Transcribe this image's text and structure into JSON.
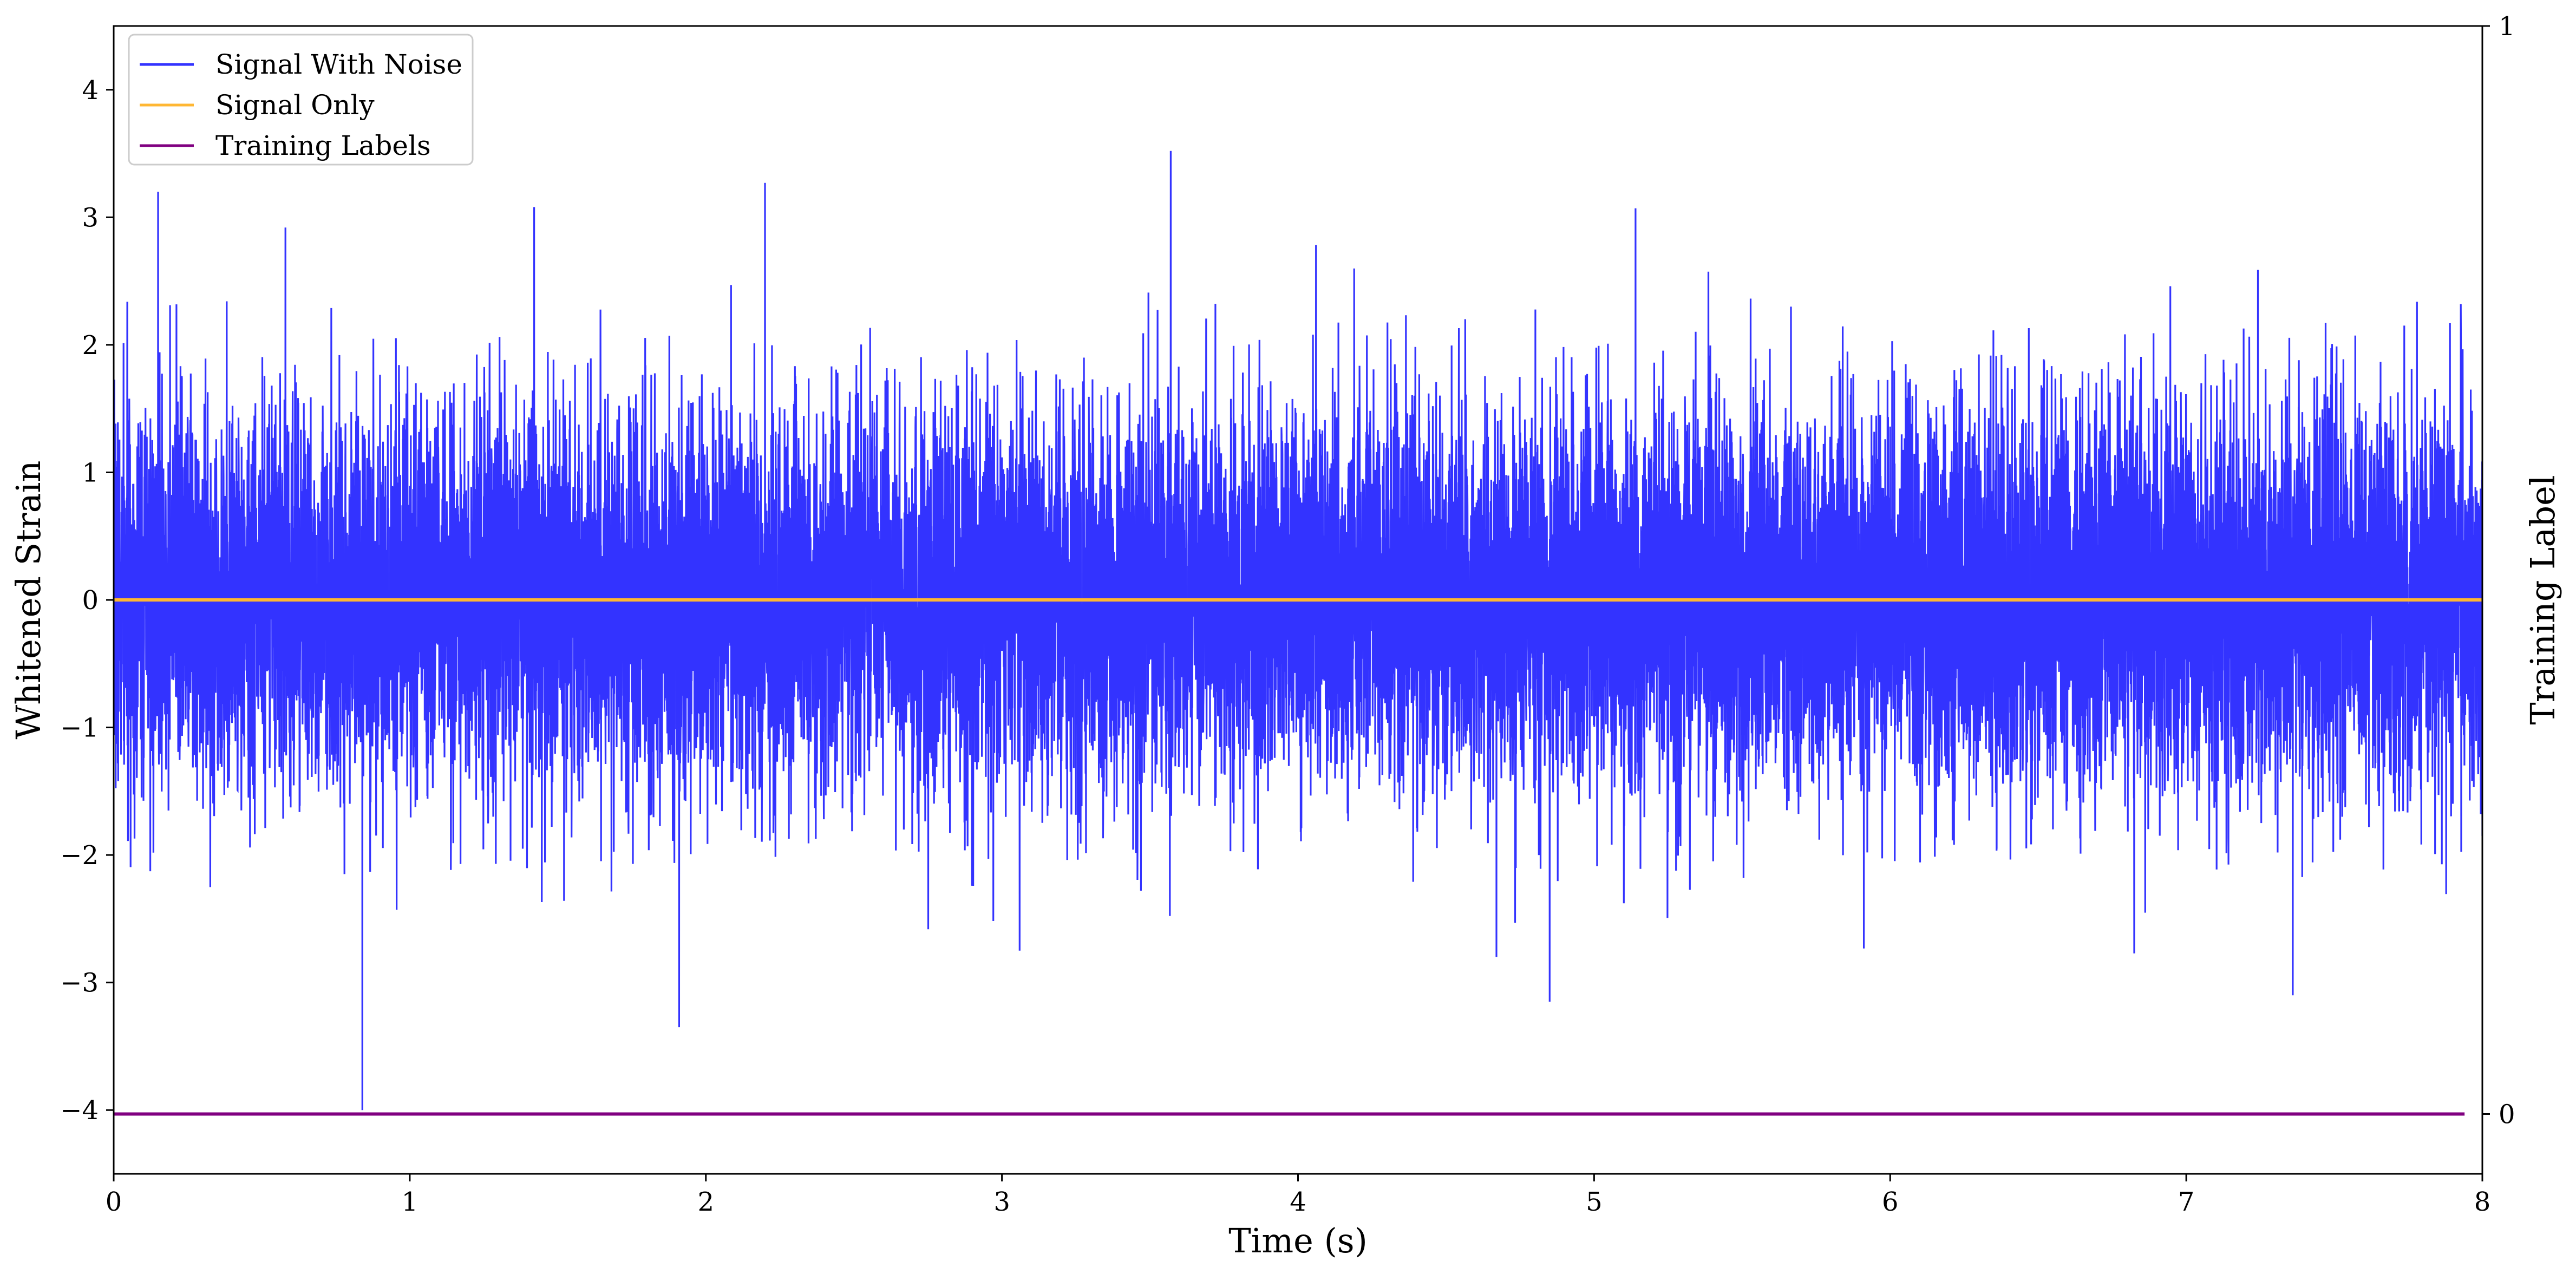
{
  "chart_data": {
    "type": "line",
    "xlabel": "Time (s)",
    "ylabel": "Whitened Strain",
    "y2label": "Training Label",
    "xlim": [
      0,
      8
    ],
    "ylim": [
      -4.5,
      4.5
    ],
    "y2lim": [
      -0.055,
      1.0
    ],
    "xticks": [
      0,
      1,
      2,
      3,
      4,
      5,
      6,
      7,
      8
    ],
    "xtick_labels": [
      "0",
      "1",
      "2",
      "3",
      "4",
      "5",
      "6",
      "7",
      "8"
    ],
    "yticks": [
      -4,
      -3,
      -2,
      -1,
      0,
      1,
      2,
      3,
      4
    ],
    "ytick_labels": [
      "−4",
      "−3",
      "−2",
      "−1",
      "0",
      "1",
      "2",
      "3",
      "4"
    ],
    "y2ticks": [
      0,
      1
    ],
    "y2tick_labels": [
      "0",
      "1"
    ],
    "grid": false,
    "legend_position": "top-left",
    "series": [
      {
        "name": "Signal With Noise",
        "color": "#3333ff",
        "kind": "noise",
        "x_range": [
          0,
          8
        ],
        "sample_count": 16384,
        "mean": 0,
        "std": 0.75,
        "peaks": [
          {
            "x": 0.15,
            "y": 3.2
          },
          {
            "x": 0.58,
            "y": 2.92
          },
          {
            "x": 1.42,
            "y": 3.08
          },
          {
            "x": 2.2,
            "y": 3.27
          },
          {
            "x": 3.57,
            "y": 3.52
          },
          {
            "x": 5.14,
            "y": 3.07
          },
          {
            "x": 0.84,
            "y": -4.0
          },
          {
            "x": 1.91,
            "y": -3.35
          },
          {
            "x": 4.85,
            "y": -3.15
          },
          {
            "x": 7.36,
            "y": -3.1
          },
          {
            "x": 3.06,
            "y": -2.75
          },
          {
            "x": 4.67,
            "y": -2.8
          }
        ]
      },
      {
        "name": "Signal Only",
        "color": "#ffb733",
        "x": [
          0,
          8
        ],
        "y": [
          0,
          0
        ]
      },
      {
        "name": "Training Labels",
        "color": "#800080",
        "axis": "right",
        "x": [
          0,
          7.94
        ],
        "y": [
          0,
          0
        ]
      }
    ]
  }
}
